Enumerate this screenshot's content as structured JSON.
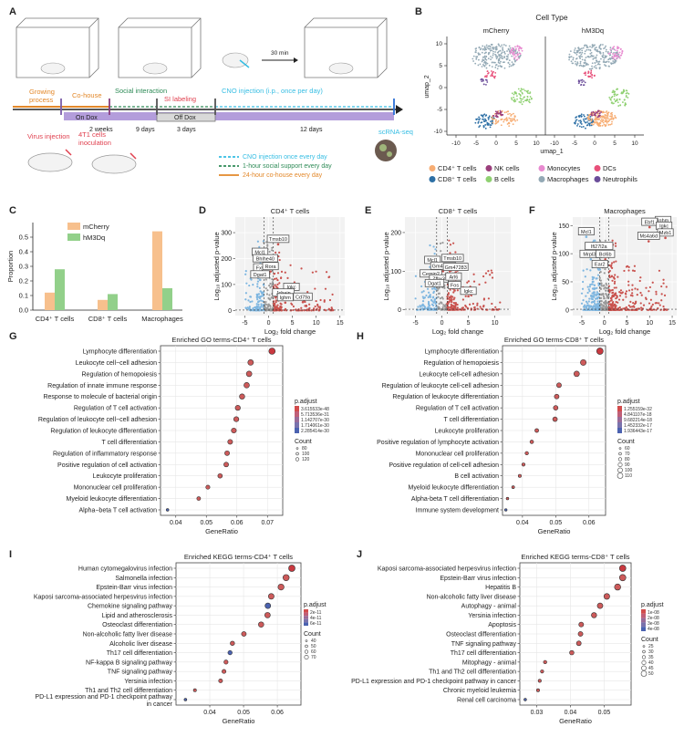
{
  "colors": {
    "orange": "#f7c08d",
    "green": "#92d08a",
    "red": "#c9524e",
    "blue": "#7eb6e0",
    "grey": "#9a9a9a",
    "purple": "#9f8cd8",
    "dox": "#b39ddb",
    "cyan": "#35bde3",
    "social": "#2e8b57",
    "cohouse": "#e3882a",
    "si": "#e0404f",
    "virus": "#e0404f"
  },
  "panelA": {
    "letter": "A",
    "growing": "Growing process",
    "cohouse": "Co-house",
    "social": "Social interaction",
    "si": "SI labeling",
    "cno": "CNO injection (i.p., once per day)",
    "thirty": "30 min",
    "ondox": "On Dox",
    "offdox": "Off Dox",
    "d1": "2 weeks",
    "d2": "9 days",
    "d3": "3 days",
    "d4": "12 days",
    "scrna": "scRNA-seq",
    "virus": "Virus injection",
    "cells": "4T1 cells inoculation",
    "legend": [
      "CNO injection once every day",
      "1-hour social support every day",
      "24-hour co-house every day"
    ]
  },
  "panelB": {
    "letter": "B",
    "title": "Cell Type",
    "left": "mCherry",
    "right": "hM3Dq",
    "xlabel": "umap_1",
    "ylabel": "umap_2",
    "xticks": [
      "-10",
      "-5",
      "0",
      "5",
      "10"
    ],
    "yticks": [
      "10",
      "5",
      "0",
      "-5",
      "-10"
    ],
    "legend": [
      {
        "label": "CD4⁺ T cells",
        "color": "#f7ad73"
      },
      {
        "label": "NK cells",
        "color": "#9b3f7c"
      },
      {
        "label": "Monocytes",
        "color": "#e88ad0"
      },
      {
        "label": "DCs",
        "color": "#e8507a"
      },
      {
        "label": "CD8⁺ T cells",
        "color": "#2c6fa5"
      },
      {
        "label": "B cells",
        "color": "#8fd071"
      },
      {
        "label": "Macrophages",
        "color": "#93a9b5"
      },
      {
        "label": "Neutrophils",
        "color": "#6b4d9a"
      }
    ]
  },
  "chart_data": [
    {
      "panel": "C",
      "type": "bar",
      "title": "",
      "ylabel": "Proportion",
      "xlabel": "",
      "categories": [
        "CD4⁺ T cells",
        "CD8⁺ T cells",
        "Macrophages"
      ],
      "series": [
        {
          "name": "mCherry",
          "values": [
            0.12,
            0.07,
            0.54
          ]
        },
        {
          "name": "hM3Dq",
          "values": [
            0.28,
            0.11,
            0.15
          ]
        }
      ],
      "ylim": [
        0,
        0.6
      ],
      "yticks": [
        "0.0",
        "0.1",
        "0.2",
        "0.3",
        "0.4",
        "0.5"
      ]
    },
    {
      "panel": "D",
      "type": "scatter",
      "title": "CD4⁺ T cells",
      "xlabel": "Log₂ fold change",
      "ylabel": "Log₁₀ adjusted p-value",
      "xticks": [
        "-5",
        "0",
        "5",
        "10",
        "15"
      ],
      "xlim": [
        -7,
        16
      ],
      "yticks": [
        "0",
        "100",
        "200",
        "300"
      ],
      "ylim": [
        -20,
        360
      ],
      "genes": [
        {
          "g": "Tmsb10",
          "x": 2.0,
          "y": 255
        },
        {
          "g": "Mcl1",
          "x": -1.8,
          "y": 205
        },
        {
          "g": "Bhlhe40",
          "x": -0.7,
          "y": 180
        },
        {
          "g": "Fxyd5",
          "x": -1.2,
          "y": 145
        },
        {
          "g": "Rora",
          "x": 0.4,
          "y": 150
        },
        {
          "g": "Dgat1",
          "x": -1.8,
          "y": 118
        },
        {
          "g": "Igkc",
          "x": 4.8,
          "y": 70
        },
        {
          "g": "Jchain",
          "x": 3.1,
          "y": 48
        },
        {
          "g": "Cd79a",
          "x": 7.2,
          "y": 32
        },
        {
          "g": "Ighm",
          "x": 3.5,
          "y": 30
        }
      ]
    },
    {
      "panel": "E",
      "type": "scatter",
      "title": "CD8⁺ T cells",
      "xlabel": "Log₂ fold change",
      "ylabel": "Log₁₀ adjusted p-value",
      "xticks": [
        "-5",
        "0",
        "5",
        "10"
      ],
      "xlim": [
        -7,
        13
      ],
      "yticks": [
        "0",
        "100",
        "200"
      ],
      "ylim": [
        -15,
        240
      ],
      "genes": [
        {
          "g": "Tmsb10",
          "x": 2.0,
          "y": 120
        },
        {
          "g": "Mcl1",
          "x": -1.8,
          "y": 115
        },
        {
          "g": "Gm42418",
          "x": 0.2,
          "y": 100
        },
        {
          "g": "Gm47283",
          "x": 2.6,
          "y": 97
        },
        {
          "g": "Cemip2",
          "x": -2.1,
          "y": 80
        },
        {
          "g": "Zfhx3",
          "x": -0.6,
          "y": 67
        },
        {
          "g": "Arl6",
          "x": 2.2,
          "y": 72
        },
        {
          "g": "Dgat1",
          "x": -1.4,
          "y": 55
        },
        {
          "g": "Fos",
          "x": 2.4,
          "y": 50
        },
        {
          "g": "Igkc",
          "x": 5.0,
          "y": 35
        }
      ]
    },
    {
      "panel": "F",
      "type": "scatter",
      "title": "Macrophages",
      "xlabel": "Log₂ fold change",
      "ylabel": "Log₁₀ adjusted p-value",
      "xticks": [
        "-5",
        "0",
        "5",
        "10",
        "15"
      ],
      "xlim": [
        -7,
        16
      ],
      "yticks": [
        "0",
        "50",
        "100",
        "150"
      ],
      "ylim": [
        -10,
        165
      ],
      "genes": [
        {
          "g": "Ighm",
          "x": 13.0,
          "y": 150
        },
        {
          "g": "Ebf1",
          "x": 10.0,
          "y": 147
        },
        {
          "g": "Igkc",
          "x": 13.2,
          "y": 140
        },
        {
          "g": "Mzb1",
          "x": 13.5,
          "y": 128
        },
        {
          "g": "Mcl1",
          "x": -4.0,
          "y": 130
        },
        {
          "g": "Ms4a6d",
          "x": 9.8,
          "y": 122
        },
        {
          "g": "Ifi27l2a",
          "x": -1.2,
          "y": 104
        },
        {
          "g": "Mrpl33",
          "x": -3.0,
          "y": 90
        },
        {
          "g": "Bcl6b",
          "x": 0.2,
          "y": 90
        },
        {
          "g": "Ear2",
          "x": -1.0,
          "y": 72
        }
      ]
    },
    {
      "panel": "G",
      "type": "scatter",
      "title": "Enriched GO terms-CD4⁺ T cells",
      "xlabel": "GeneRatio",
      "xlim": [
        0.035,
        0.075
      ],
      "xticks": [
        0.04,
        0.05,
        0.06,
        0.07
      ],
      "legend_padj_title": "p.adjust",
      "legend_padj": [
        "3.615533e-48",
        "5.713536e-31",
        "1.142707e-30",
        "1.714061e-30",
        "2.285414e-30"
      ],
      "legend_count_title": "Count",
      "legend_count": [
        "80",
        "100",
        "120"
      ],
      "terms": [
        "Lymphocyte differentiation",
        "Leukocyte cell−cell adhesion",
        "Regulation of hemopoiesis",
        "Regulation of innate immune response",
        "Response to molecule of bacterial origin",
        "Regulation of T cell activation",
        "Regulation of leukocyte cell−cell adhesion",
        "Regulation of leukocyte differentiation",
        "T cell differentiation",
        "Regulation of inflammatory response",
        "Positive regulation of cell activation",
        "Leukocyte proliferation",
        "Mononuclear cell proliferation",
        "Myeloid leukocyte differentiation",
        "Alpha−beta T cell activation"
      ],
      "ratios": [
        0.0715,
        0.0645,
        0.064,
        0.0632,
        0.0617,
        0.0603,
        0.0598,
        0.059,
        0.0578,
        0.0568,
        0.0565,
        0.0545,
        0.0505,
        0.0475,
        0.0373
      ]
    },
    {
      "panel": "H",
      "type": "scatter",
      "title": "Enriched GO terms-CD8⁺ T cells",
      "xlabel": "GeneRatio",
      "xlim": [
        0.034,
        0.065
      ],
      "xticks": [
        0.04,
        0.05,
        0.06
      ],
      "legend_padj_title": "p.adjust",
      "legend_padj": [
        "1.255159e-32",
        "4.841107e-18",
        "9.682214e-18",
        "1.452332e-17",
        "1.936443e-17"
      ],
      "legend_count_title": "Count",
      "legend_count": [
        "60",
        "70",
        "80",
        "90",
        "100",
        "110"
      ],
      "terms": [
        "Lymphocyte differentiation",
        "Regulation of hemopoiesis",
        "Leukocyte cell-cell adhesion",
        "Regulation of leukocyte cell-cell adhesion",
        "Regulation of leukocyte differentiation",
        "Regulation of T cell activation",
        "T cell differentiation",
        "Leukocyte proliferation",
        "Positive regulation of lymphocyte activation",
        "Mononuclear cell proliferation",
        "Positive regulation of cell-cell adhesion",
        "B cell activation",
        "Myeloid leukocyte differentiation",
        "Alpha-beta T cell differentiation",
        "Immune system development"
      ],
      "ratios": [
        0.0633,
        0.0583,
        0.0563,
        0.051,
        0.0503,
        0.05,
        0.0498,
        0.0443,
        0.0428,
        0.0413,
        0.0403,
        0.0392,
        0.0372,
        0.0355,
        0.035
      ]
    },
    {
      "panel": "I",
      "type": "scatter",
      "title": "Enriched KEGG terms-CD4⁺ T cells",
      "xlabel": "GeneRatio",
      "xlim": [
        0.03,
        0.067
      ],
      "xticks": [
        0.04,
        0.05,
        0.06
      ],
      "legend_padj_title": "p.adjust",
      "legend_padj": [
        "2e-11",
        "4e-11",
        "6e-11"
      ],
      "legend_count_title": "Count",
      "legend_count": [
        "40",
        "50",
        "60",
        "70"
      ],
      "terms": [
        "Human cytomegalovirus infection",
        "Salmonella infection",
        "Epstein-Barr virus infection",
        "Kaposi sarcoma-associated herpesvirus infection",
        "Chemokine signaling pathway",
        "Lipid and atherosclerosis",
        "Osteoclast differentiation",
        "Non-alcoholic fatty liver disease",
        "Alcoholic liver disease",
        "Th17 cell differentiation",
        "NF-kappa B signaling pathway",
        "TNF signaling pathway",
        "Yersinia infection",
        "Th1 and Th2 cell differentiation",
        "PD-L1 expression and PD-1 checkpoint pathway in cancer"
      ],
      "ratios": [
        0.0643,
        0.0626,
        0.0611,
        0.0582,
        0.0572,
        0.0571,
        0.0552,
        0.0501,
        0.0467,
        0.046,
        0.0448,
        0.0442,
        0.0432,
        0.0356,
        0.0328
      ]
    },
    {
      "panel": "J",
      "type": "scatter",
      "title": "Enriched KEGG terms-CD8⁺ T cells",
      "xlabel": "GeneRatio",
      "xlim": [
        0.025,
        0.058
      ],
      "xticks": [
        0.03,
        0.04,
        0.05
      ],
      "legend_padj_title": "p.adjust",
      "legend_padj": [
        "1e-08",
        "2e-08",
        "3e-08",
        "4e-08"
      ],
      "legend_count_title": "Count",
      "legend_count": [
        "25",
        "30",
        "35",
        "40",
        "45",
        "50"
      ],
      "terms": [
        "Kaposi sarcoma-associated herpesvirus infection",
        "Epstein-Barr virus infection",
        "Hepatitis B",
        "Non-alcoholic fatty liver disease",
        "Autophagy - animal",
        "Yersinia infection",
        "Apoptosis",
        "Osteoclast differentiation",
        "TNF signaling pathway",
        "Th17 cell differentiation",
        "Mitophagy - animal",
        "Th1 and Th2 cell differentiation",
        "PD-L1 expression and PD-1 checkpoint pathway in cancer",
        "Chronic myeloid leukemia",
        "Renal cell carcinoma"
      ],
      "ratios": [
        0.0555,
        0.0555,
        0.054,
        0.0508,
        0.0488,
        0.047,
        0.0432,
        0.043,
        0.0425,
        0.0404,
        0.0325,
        0.0316,
        0.0309,
        0.0304,
        0.0266
      ]
    }
  ]
}
